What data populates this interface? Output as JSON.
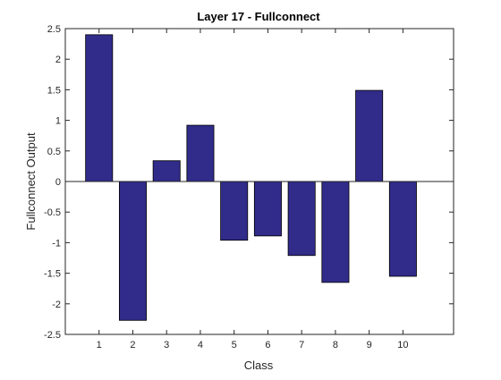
{
  "chart_data": {
    "type": "bar",
    "title": "Layer 17 - Fullconnect",
    "xlabel": "Class",
    "ylabel": "Fullconnect Output",
    "categories": [
      "1",
      "2",
      "3",
      "4",
      "5",
      "6",
      "7",
      "8",
      "9",
      "10"
    ],
    "values": [
      2.4,
      -2.27,
      0.34,
      0.92,
      -0.96,
      -0.89,
      -1.21,
      -1.65,
      1.49,
      -1.55
    ],
    "xlim": [
      0,
      11.5
    ],
    "ylim": [
      -2.5,
      2.5
    ],
    "yticks": [
      "-2.5",
      "-2",
      "-1.5",
      "-1",
      "-0.5",
      "0",
      "0.5",
      "1",
      "1.5",
      "2",
      "2.5"
    ],
    "grid": false,
    "bar_color": "#312b8a",
    "bar_edge_color": "#000000",
    "axis_color": "#262626"
  }
}
